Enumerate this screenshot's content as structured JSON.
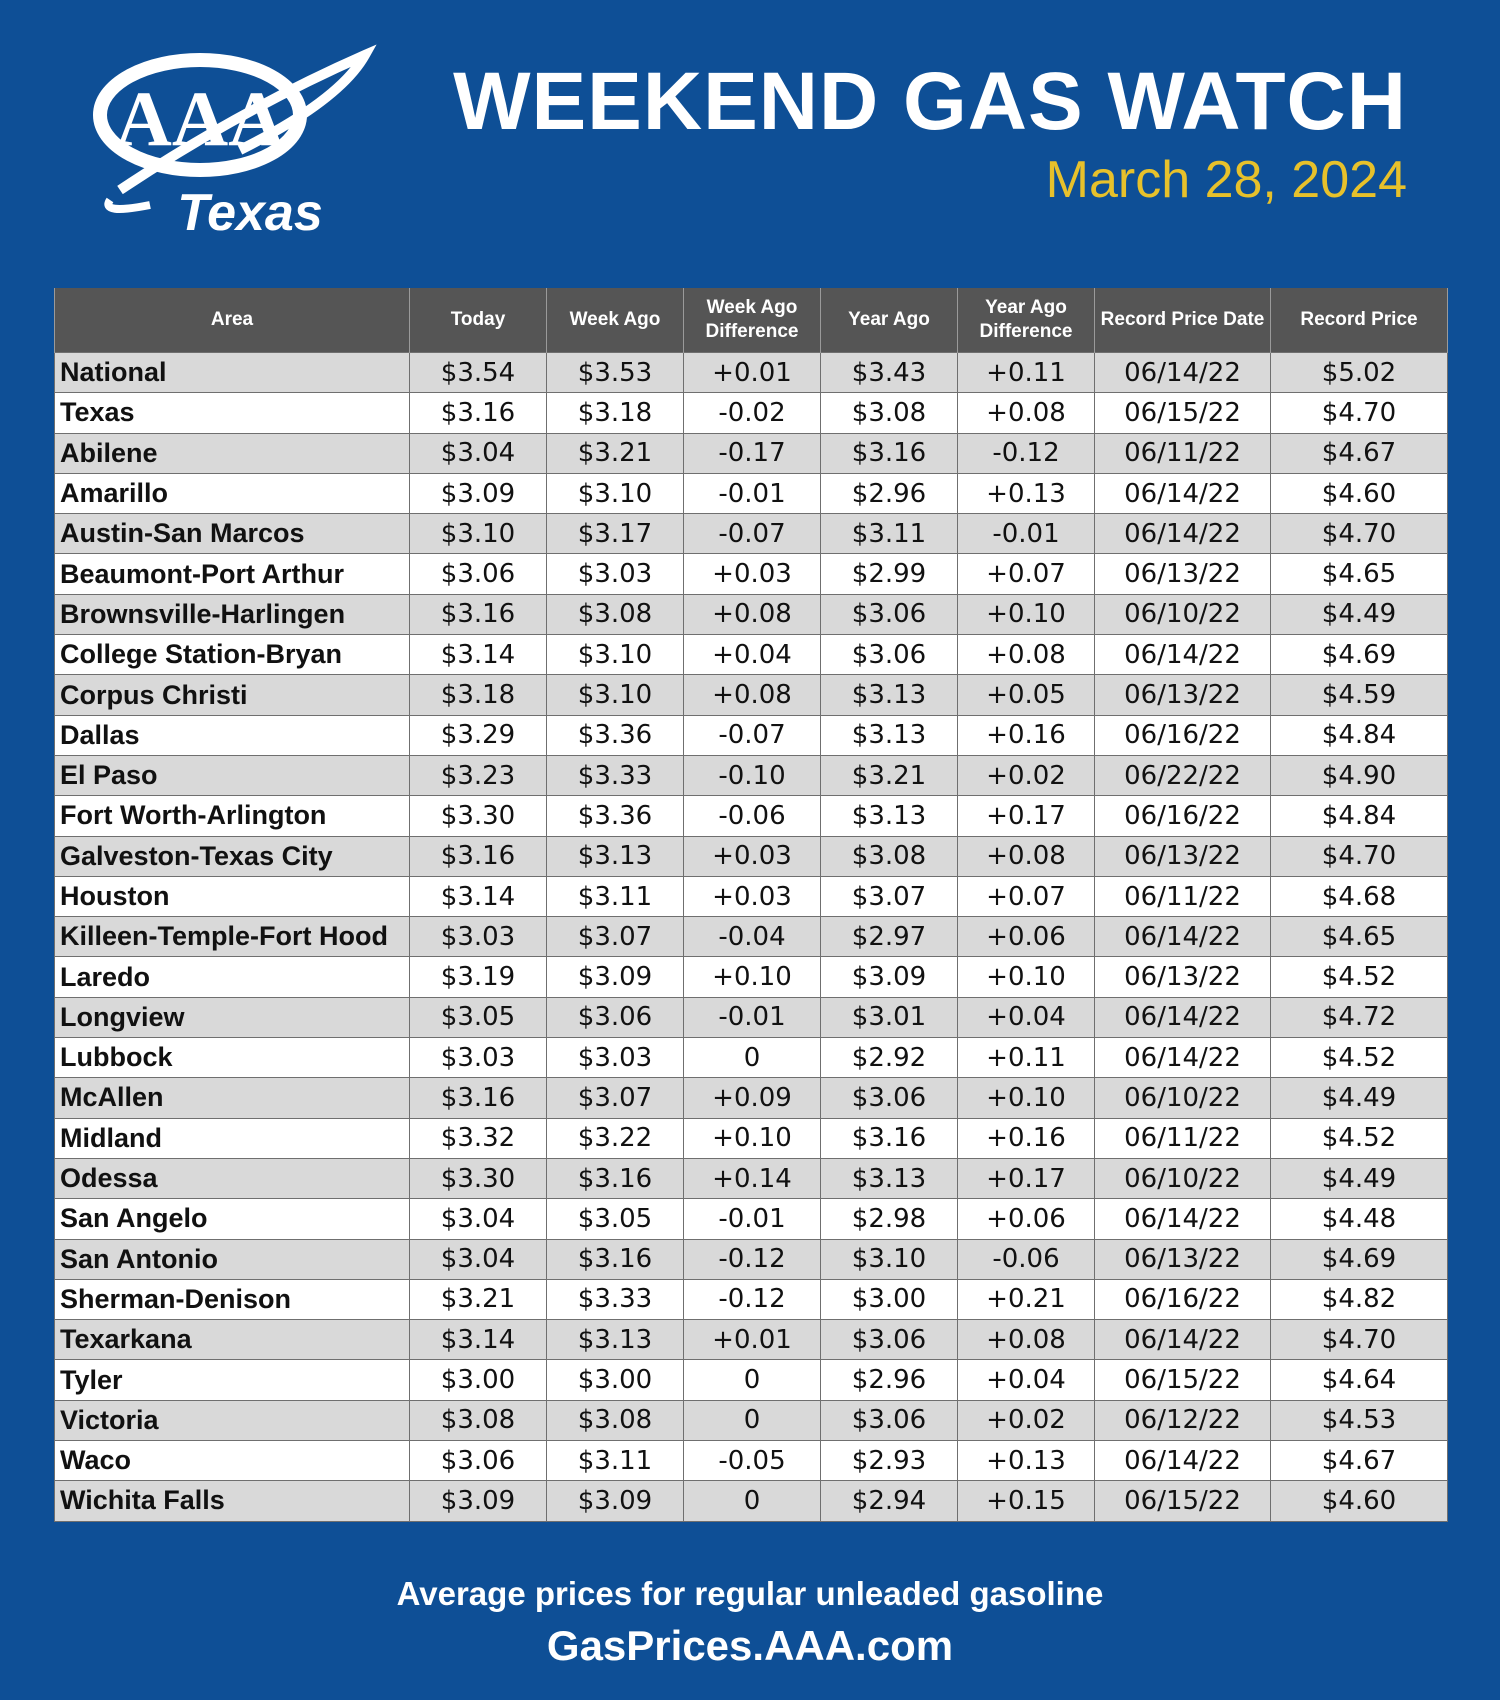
{
  "header": {
    "logo_text": "AAA",
    "logo_subtext": "Texas",
    "title": "WEEKEND GAS WATCH",
    "date": "March 28, 2024"
  },
  "colors": {
    "background": "#0e4f96",
    "date": "#e7c12b",
    "header_row": "#555555",
    "shaded_row": "#d9d9d9"
  },
  "table": {
    "columns": [
      "Area",
      "Today",
      "Week Ago",
      "Week Ago Difference",
      "Year Ago",
      "Year Ago Difference",
      "Record Price Date",
      "Record Price"
    ],
    "rows": [
      [
        "National",
        "$3.54",
        "$3.53",
        "+0.01",
        "$3.43",
        "+0.11",
        "06/14/22",
        "$5.02"
      ],
      [
        "Texas",
        "$3.16",
        "$3.18",
        "-0.02",
        "$3.08",
        "+0.08",
        "06/15/22",
        "$4.70"
      ],
      [
        "Abilene",
        "$3.04",
        "$3.21",
        "-0.17",
        "$3.16",
        "-0.12",
        "06/11/22",
        "$4.67"
      ],
      [
        "Amarillo",
        "$3.09",
        "$3.10",
        "-0.01",
        "$2.96",
        "+0.13",
        "06/14/22",
        "$4.60"
      ],
      [
        "Austin-San Marcos",
        "$3.10",
        "$3.17",
        "-0.07",
        "$3.11",
        "-0.01",
        "06/14/22",
        "$4.70"
      ],
      [
        "Beaumont-Port Arthur",
        "$3.06",
        "$3.03",
        "+0.03",
        "$2.99",
        "+0.07",
        "06/13/22",
        "$4.65"
      ],
      [
        "Brownsville-Harlingen",
        "$3.16",
        "$3.08",
        "+0.08",
        "$3.06",
        "+0.10",
        "06/10/22",
        "$4.49"
      ],
      [
        "College Station-Bryan",
        "$3.14",
        "$3.10",
        "+0.04",
        "$3.06",
        "+0.08",
        "06/14/22",
        "$4.69"
      ],
      [
        "Corpus Christi",
        "$3.18",
        "$3.10",
        "+0.08",
        "$3.13",
        "+0.05",
        "06/13/22",
        "$4.59"
      ],
      [
        "Dallas",
        "$3.29",
        "$3.36",
        "-0.07",
        "$3.13",
        "+0.16",
        "06/16/22",
        "$4.84"
      ],
      [
        "El Paso",
        "$3.23",
        "$3.33",
        "-0.10",
        "$3.21",
        "+0.02",
        "06/22/22",
        "$4.90"
      ],
      [
        "Fort Worth-Arlington",
        "$3.30",
        "$3.36",
        "-0.06",
        "$3.13",
        "+0.17",
        "06/16/22",
        "$4.84"
      ],
      [
        "Galveston-Texas City",
        "$3.16",
        "$3.13",
        "+0.03",
        "$3.08",
        "+0.08",
        "06/13/22",
        "$4.70"
      ],
      [
        "Houston",
        "$3.14",
        "$3.11",
        "+0.03",
        "$3.07",
        "+0.07",
        "06/11/22",
        "$4.68"
      ],
      [
        "Killeen-Temple-Fort Hood",
        "$3.03",
        "$3.07",
        "-0.04",
        "$2.97",
        "+0.06",
        "06/14/22",
        "$4.65"
      ],
      [
        "Laredo",
        "$3.19",
        "$3.09",
        "+0.10",
        "$3.09",
        "+0.10",
        "06/13/22",
        "$4.52"
      ],
      [
        "Longview",
        "$3.05",
        "$3.06",
        "-0.01",
        "$3.01",
        "+0.04",
        "06/14/22",
        "$4.72"
      ],
      [
        "Lubbock",
        "$3.03",
        "$3.03",
        "0",
        "$2.92",
        "+0.11",
        "06/14/22",
        "$4.52"
      ],
      [
        "McAllen",
        "$3.16",
        "$3.07",
        "+0.09",
        "$3.06",
        "+0.10",
        "06/10/22",
        "$4.49"
      ],
      [
        "Midland",
        "$3.32",
        "$3.22",
        "+0.10",
        "$3.16",
        "+0.16",
        "06/11/22",
        "$4.52"
      ],
      [
        "Odessa",
        "$3.30",
        "$3.16",
        "+0.14",
        "$3.13",
        "+0.17",
        "06/10/22",
        "$4.49"
      ],
      [
        "San Angelo",
        "$3.04",
        "$3.05",
        "-0.01",
        "$2.98",
        "+0.06",
        "06/14/22",
        "$4.48"
      ],
      [
        "San Antonio",
        "$3.04",
        "$3.16",
        "-0.12",
        "$3.10",
        "-0.06",
        "06/13/22",
        "$4.69"
      ],
      [
        "Sherman-Denison",
        "$3.21",
        "$3.33",
        "-0.12",
        "$3.00",
        "+0.21",
        "06/16/22",
        "$4.82"
      ],
      [
        "Texarkana",
        "$3.14",
        "$3.13",
        "+0.01",
        "$3.06",
        "+0.08",
        "06/14/22",
        "$4.70"
      ],
      [
        "Tyler",
        "$3.00",
        "$3.00",
        "0",
        "$2.96",
        "+0.04",
        "06/15/22",
        "$4.64"
      ],
      [
        "Victoria",
        "$3.08",
        "$3.08",
        "0",
        "$3.06",
        "+0.02",
        "06/12/22",
        "$4.53"
      ],
      [
        "Waco",
        "$3.06",
        "$3.11",
        "-0.05",
        "$2.93",
        "+0.13",
        "06/14/22",
        "$4.67"
      ],
      [
        "Wichita Falls",
        "$3.09",
        "$3.09",
        "0",
        "$2.94",
        "+0.15",
        "06/15/22",
        "$4.60"
      ]
    ]
  },
  "footer": {
    "line1": "Average prices for regular unleaded gasoline",
    "line2": "GasPrices.AAA.com"
  }
}
